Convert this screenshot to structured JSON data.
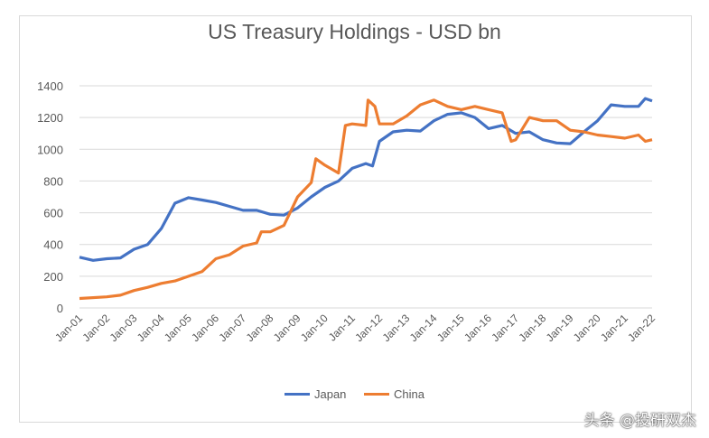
{
  "chart_data": {
    "type": "line",
    "title": "US Treasury Holdings - USD bn",
    "xlabel": "",
    "ylabel": "",
    "ylim": [
      0,
      1400
    ],
    "yticks": [
      0,
      200,
      400,
      600,
      800,
      1000,
      1200,
      1400
    ],
    "xticks": [
      "Jan-01",
      "Jan-02",
      "Jan-03",
      "Jan-04",
      "Jan-05",
      "Jan-06",
      "Jan-07",
      "Jan-08",
      "Jan-09",
      "Jan-10",
      "Jan-11",
      "Jan-12",
      "Jan-13",
      "Jan-14",
      "Jan-15",
      "Jan-16",
      "Jan-17",
      "Jan-18",
      "Jan-19",
      "Jan-20",
      "Jan-21",
      "Jan-22"
    ],
    "grid": true,
    "legend_position": "bottom",
    "series": [
      {
        "name": "Japan",
        "color": "#4472c4",
        "points": [
          [
            "2001-01",
            320
          ],
          [
            "2001-07",
            300
          ],
          [
            "2002-01",
            310
          ],
          [
            "2002-07",
            315
          ],
          [
            "2003-01",
            370
          ],
          [
            "2003-07",
            400
          ],
          [
            "2004-01",
            500
          ],
          [
            "2004-07",
            660
          ],
          [
            "2005-01",
            695
          ],
          [
            "2005-07",
            680
          ],
          [
            "2006-01",
            665
          ],
          [
            "2006-07",
            640
          ],
          [
            "2007-01",
            615
          ],
          [
            "2007-07",
            615
          ],
          [
            "2008-01",
            590
          ],
          [
            "2008-07",
            585
          ],
          [
            "2009-01",
            630
          ],
          [
            "2009-07",
            700
          ],
          [
            "2010-01",
            760
          ],
          [
            "2010-07",
            800
          ],
          [
            "2011-01",
            880
          ],
          [
            "2011-07",
            910
          ],
          [
            "2011-10",
            895
          ],
          [
            "2012-01",
            1050
          ],
          [
            "2012-07",
            1110
          ],
          [
            "2013-01",
            1120
          ],
          [
            "2013-07",
            1115
          ],
          [
            "2014-01",
            1180
          ],
          [
            "2014-07",
            1220
          ],
          [
            "2015-01",
            1230
          ],
          [
            "2015-07",
            1200
          ],
          [
            "2016-01",
            1130
          ],
          [
            "2016-07",
            1150
          ],
          [
            "2017-01",
            1100
          ],
          [
            "2017-07",
            1110
          ],
          [
            "2018-01",
            1060
          ],
          [
            "2018-07",
            1040
          ],
          [
            "2019-01",
            1035
          ],
          [
            "2019-07",
            1110
          ],
          [
            "2020-01",
            1180
          ],
          [
            "2020-07",
            1280
          ],
          [
            "2021-01",
            1270
          ],
          [
            "2021-07",
            1270
          ],
          [
            "2021-10",
            1320
          ],
          [
            "2022-01",
            1305
          ]
        ]
      },
      {
        "name": "China",
        "color": "#ed7d31",
        "points": [
          [
            "2001-01",
            60
          ],
          [
            "2002-01",
            70
          ],
          [
            "2002-07",
            80
          ],
          [
            "2003-01",
            110
          ],
          [
            "2003-07",
            130
          ],
          [
            "2004-01",
            155
          ],
          [
            "2004-07",
            170
          ],
          [
            "2005-01",
            200
          ],
          [
            "2005-07",
            230
          ],
          [
            "2006-01",
            310
          ],
          [
            "2006-07",
            335
          ],
          [
            "2007-01",
            390
          ],
          [
            "2007-07",
            410
          ],
          [
            "2007-09",
            480
          ],
          [
            "2008-01",
            480
          ],
          [
            "2008-07",
            520
          ],
          [
            "2009-01",
            700
          ],
          [
            "2009-07",
            790
          ],
          [
            "2009-09",
            940
          ],
          [
            "2010-01",
            900
          ],
          [
            "2010-07",
            850
          ],
          [
            "2010-10",
            1150
          ],
          [
            "2011-01",
            1160
          ],
          [
            "2011-07",
            1150
          ],
          [
            "2011-08",
            1310
          ],
          [
            "2011-11",
            1270
          ],
          [
            "2012-01",
            1160
          ],
          [
            "2012-07",
            1160
          ],
          [
            "2013-01",
            1210
          ],
          [
            "2013-07",
            1280
          ],
          [
            "2014-01",
            1310
          ],
          [
            "2014-07",
            1270
          ],
          [
            "2015-01",
            1250
          ],
          [
            "2015-07",
            1270
          ],
          [
            "2016-01",
            1250
          ],
          [
            "2016-07",
            1230
          ],
          [
            "2016-11",
            1050
          ],
          [
            "2017-01",
            1060
          ],
          [
            "2017-07",
            1200
          ],
          [
            "2018-01",
            1180
          ],
          [
            "2018-07",
            1180
          ],
          [
            "2019-01",
            1120
          ],
          [
            "2019-07",
            1110
          ],
          [
            "2020-01",
            1090
          ],
          [
            "2020-07",
            1080
          ],
          [
            "2021-01",
            1070
          ],
          [
            "2021-07",
            1090
          ],
          [
            "2021-10",
            1050
          ],
          [
            "2022-01",
            1060
          ]
        ]
      }
    ]
  },
  "watermark": "头条 @投研双杰"
}
